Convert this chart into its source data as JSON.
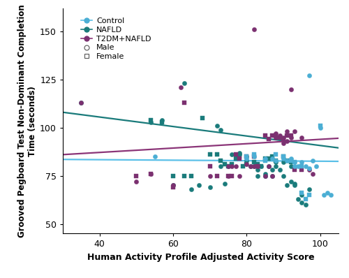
{
  "xlabel": "Human Activity Profile Adjusted Activity Score",
  "ylabel": "Grooved Pegboard Test Non-Dominant Completion\nTime (seconds)",
  "xlim": [
    30,
    105
  ],
  "ylim": [
    45,
    162
  ],
  "xticks": [
    40,
    60,
    80,
    100
  ],
  "yticks": [
    50,
    75,
    100,
    125,
    150
  ],
  "control_color": "#4BAED4",
  "nafld_color": "#1A7B7B",
  "t2dm_color": "#7B3070",
  "fit_control_color": "#5BC0E8",
  "fit_nafld_color": "#1A7B7B",
  "fit_t2dm_color": "#8B3578",
  "control_line": [
    83.5,
    82.5
  ],
  "nafld_line": [
    108.0,
    89.5
  ],
  "t2dm_line": [
    86.0,
    94.5
  ],
  "control_male": [
    [
      55,
      85
    ],
    [
      80,
      84
    ],
    [
      82,
      85
    ],
    [
      85,
      84
    ],
    [
      87,
      84
    ],
    [
      88,
      83
    ],
    [
      90,
      84
    ],
    [
      91,
      83
    ],
    [
      92,
      84
    ],
    [
      93,
      82
    ],
    [
      93,
      80
    ],
    [
      94,
      80
    ],
    [
      95,
      82
    ],
    [
      96,
      80
    ],
    [
      97,
      79
    ],
    [
      98,
      83
    ],
    [
      99,
      80
    ],
    [
      100,
      100
    ],
    [
      101,
      65
    ],
    [
      102,
      66
    ],
    [
      103,
      65
    ],
    [
      97,
      127
    ]
  ],
  "control_female": [
    [
      80,
      85
    ],
    [
      82,
      86
    ],
    [
      85,
      83
    ],
    [
      88,
      86
    ],
    [
      90,
      85
    ],
    [
      92,
      83
    ],
    [
      93,
      82
    ],
    [
      95,
      80
    ],
    [
      95,
      66
    ],
    [
      96,
      63
    ],
    [
      97,
      65
    ],
    [
      100,
      101
    ]
  ],
  "nafld_male": [
    [
      35,
      113
    ],
    [
      54,
      103
    ],
    [
      57,
      104
    ],
    [
      60,
      70
    ],
    [
      63,
      123
    ],
    [
      65,
      68
    ],
    [
      67,
      70
    ],
    [
      70,
      69
    ],
    [
      72,
      101
    ],
    [
      73,
      99
    ],
    [
      73,
      80
    ],
    [
      74,
      71
    ],
    [
      75,
      80
    ],
    [
      76,
      86
    ],
    [
      77,
      86
    ],
    [
      78,
      87
    ],
    [
      78,
      86
    ],
    [
      80,
      85
    ],
    [
      80,
      83
    ],
    [
      81,
      80
    ],
    [
      82,
      80
    ],
    [
      83,
      75
    ],
    [
      83,
      78
    ],
    [
      84,
      80
    ],
    [
      85,
      76
    ],
    [
      85,
      75
    ],
    [
      86,
      80
    ],
    [
      87,
      75
    ],
    [
      87,
      78
    ],
    [
      88,
      82
    ],
    [
      88,
      80
    ],
    [
      89,
      78
    ],
    [
      90,
      82
    ],
    [
      90,
      75
    ],
    [
      91,
      70
    ],
    [
      92,
      80
    ],
    [
      92,
      72
    ],
    [
      93,
      71
    ],
    [
      93,
      70
    ],
    [
      94,
      63
    ],
    [
      95,
      61
    ],
    [
      95,
      65
    ],
    [
      96,
      60
    ],
    [
      97,
      68
    ]
  ],
  "nafld_female": [
    [
      54,
      104
    ],
    [
      57,
      103
    ],
    [
      60,
      75
    ],
    [
      63,
      75
    ],
    [
      65,
      75
    ],
    [
      68,
      105
    ],
    [
      70,
      86
    ],
    [
      72,
      86
    ],
    [
      73,
      83
    ],
    [
      74,
      81
    ],
    [
      75,
      80
    ],
    [
      76,
      81
    ],
    [
      77,
      84
    ],
    [
      78,
      85
    ],
    [
      79,
      80
    ],
    [
      80,
      81
    ],
    [
      82,
      82
    ],
    [
      83,
      81
    ],
    [
      84,
      80
    ],
    [
      85,
      84
    ],
    [
      86,
      84
    ],
    [
      87,
      85
    ],
    [
      88,
      83
    ],
    [
      90,
      85
    ],
    [
      91,
      83
    ],
    [
      92,
      82
    ]
  ],
  "t2dm_male": [
    [
      35,
      113
    ],
    [
      50,
      72
    ],
    [
      54,
      76
    ],
    [
      60,
      70
    ],
    [
      62,
      121
    ],
    [
      70,
      75
    ],
    [
      75,
      80
    ],
    [
      75,
      75
    ],
    [
      76,
      80
    ],
    [
      77,
      80
    ],
    [
      78,
      75
    ],
    [
      80,
      81
    ],
    [
      81,
      80
    ],
    [
      82,
      80
    ],
    [
      83,
      80
    ],
    [
      85,
      75
    ],
    [
      86,
      80
    ],
    [
      87,
      75
    ],
    [
      82,
      151
    ],
    [
      88,
      95
    ],
    [
      88,
      97
    ],
    [
      89,
      96
    ],
    [
      90,
      95
    ],
    [
      90,
      92
    ],
    [
      91,
      98
    ],
    [
      91,
      93
    ],
    [
      92,
      95
    ],
    [
      92,
      120
    ],
    [
      93,
      98
    ],
    [
      95,
      95
    ],
    [
      97,
      78
    ],
    [
      98,
      76
    ]
  ],
  "t2dm_female": [
    [
      50,
      75
    ],
    [
      54,
      76
    ],
    [
      60,
      69
    ],
    [
      63,
      113
    ],
    [
      70,
      80
    ],
    [
      72,
      75
    ],
    [
      75,
      75
    ],
    [
      76,
      75
    ],
    [
      77,
      86
    ],
    [
      78,
      84
    ],
    [
      80,
      85
    ],
    [
      82,
      85
    ],
    [
      83,
      80
    ],
    [
      85,
      96
    ],
    [
      86,
      94
    ],
    [
      87,
      96
    ],
    [
      88,
      96
    ],
    [
      89,
      95
    ],
    [
      90,
      94
    ],
    [
      91,
      96
    ],
    [
      92,
      96
    ],
    [
      93,
      78
    ],
    [
      95,
      78
    ]
  ]
}
